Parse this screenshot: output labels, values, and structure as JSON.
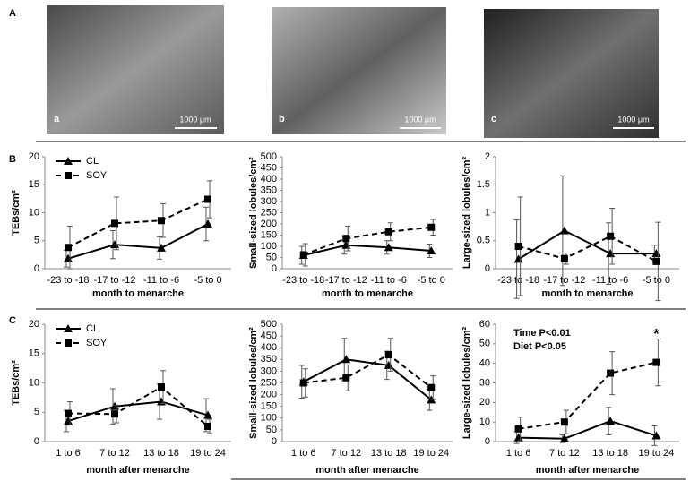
{
  "panel_labels": [
    "A",
    "B",
    "C"
  ],
  "images": [
    {
      "label": "a",
      "scale": "1000 μm"
    },
    {
      "label": "b",
      "scale": "1000 μm"
    },
    {
      "label": "c",
      "scale": "1000 μm"
    }
  ],
  "chart_data": [
    {
      "type": "line",
      "y_label": "TEBs/cm²",
      "x_label": "month to menarche",
      "categories": [
        "-23 to -18",
        "-17 to -12",
        "-11 to -6",
        "-5 to 0"
      ],
      "ylim": [
        0,
        20
      ],
      "yticks": [
        0,
        5,
        10,
        15,
        20
      ],
      "legend": "top-left",
      "series": [
        {
          "name": "CL",
          "color": "#000000",
          "marker": "triangle",
          "dashed": false,
          "values": [
            1.8,
            4.3,
            3.7,
            8.0
          ],
          "errors": [
            1.5,
            2.5,
            2.0,
            3.0
          ]
        },
        {
          "name": "SOY",
          "color": "#000000",
          "marker": "square",
          "dashed": true,
          "values": [
            3.8,
            8.1,
            8.6,
            12.4
          ],
          "errors": [
            3.8,
            4.7,
            3.0,
            3.3
          ]
        }
      ]
    },
    {
      "type": "line",
      "y_label": "Small-sized lobules/cm²",
      "x_label": "month to menarche",
      "categories": [
        "-23 to -18",
        "-17 to -12",
        "-11 to -6",
        "-5 to 0"
      ],
      "ylim": [
        0,
        500
      ],
      "yticks": [
        0,
        50,
        100,
        150,
        200,
        250,
        300,
        350,
        400,
        450,
        500
      ],
      "series": [
        {
          "name": "CL",
          "color": "#000000",
          "marker": "triangle",
          "dashed": false,
          "values": [
            60,
            105,
            95,
            80
          ],
          "errors": [
            40,
            40,
            30,
            30
          ]
        },
        {
          "name": "SOY",
          "color": "#000000",
          "marker": "square",
          "dashed": true,
          "values": [
            62,
            135,
            165,
            185
          ],
          "errors": [
            50,
            55,
            40,
            35
          ]
        }
      ]
    },
    {
      "type": "line",
      "y_label": "Large-sized lobules/cm²",
      "x_label": "month to menarche",
      "categories": [
        "-23 to -18",
        "-17 to -12",
        "-11 to -6",
        "-5 to 0"
      ],
      "ylim": [
        0,
        2
      ],
      "yticks": [
        0,
        0.5,
        1,
        1.5,
        2
      ],
      "series": [
        {
          "name": "CL",
          "color": "#000000",
          "marker": "triangle",
          "dashed": false,
          "values": [
            0.17,
            0.68,
            0.27,
            0.27
          ],
          "errors": [
            0.7,
            0.98,
            0.55,
            0.15
          ]
        },
        {
          "name": "SOY",
          "color": "#000000",
          "marker": "square",
          "dashed": true,
          "values": [
            0.4,
            0.18,
            0.58,
            0.13
          ],
          "errors": [
            0.88,
            0.1,
            0.5,
            0.7
          ]
        }
      ]
    },
    {
      "type": "line",
      "y_label": "TEBs/cm²",
      "x_label": "month after menarche",
      "categories": [
        "1 to 6",
        "7 to 12",
        "13 to 18",
        "19 to 24"
      ],
      "ylim": [
        0,
        20
      ],
      "yticks": [
        0,
        5,
        10,
        15,
        20
      ],
      "legend": "top-left",
      "series": [
        {
          "name": "CL",
          "color": "#000000",
          "marker": "triangle",
          "dashed": false,
          "values": [
            3.5,
            6.0,
            6.8,
            4.5
          ],
          "errors": [
            1.8,
            3.0,
            3.0,
            2.8
          ]
        },
        {
          "name": "SOY",
          "color": "#000000",
          "marker": "square",
          "dashed": true,
          "values": [
            4.8,
            4.7,
            9.3,
            2.6
          ],
          "errors": [
            2.0,
            1.5,
            2.8,
            1.2
          ]
        }
      ]
    },
    {
      "type": "line",
      "y_label": "Small-sized lobules/cm²",
      "x_label": "month after menarche",
      "categories": [
        "1 to 6",
        "7 to 12",
        "13 to 18",
        "19 to 24"
      ],
      "ylim": [
        0,
        500
      ],
      "yticks": [
        0,
        50,
        100,
        150,
        200,
        250,
        300,
        350,
        400,
        450,
        500
      ],
      "series": [
        {
          "name": "CL",
          "color": "#000000",
          "marker": "triangle",
          "dashed": false,
          "values": [
            255,
            350,
            325,
            178
          ],
          "errors": [
            70,
            90,
            60,
            45
          ]
        },
        {
          "name": "SOY",
          "color": "#000000",
          "marker": "square",
          "dashed": true,
          "values": [
            250,
            272,
            370,
            230
          ],
          "errors": [
            60,
            55,
            70,
            50
          ]
        }
      ]
    },
    {
      "type": "line",
      "y_label": "Large-sized lobules/cm²",
      "x_label": "month after menarche",
      "categories": [
        "1 to 6",
        "7 to 12",
        "13 to 18",
        "19 to 24"
      ],
      "ylim": [
        0,
        60
      ],
      "yticks": [
        0,
        10,
        20,
        30,
        40,
        50,
        60
      ],
      "annotations": [
        "Time P<0.01",
        "Diet P<0.05",
        "*"
      ],
      "series": [
        {
          "name": "CL",
          "color": "#000000",
          "marker": "triangle",
          "dashed": false,
          "values": [
            2,
            1.5,
            10.5,
            3
          ],
          "errors": [
            3,
            2,
            7,
            5
          ]
        },
        {
          "name": "SOY",
          "color": "#000000",
          "marker": "square",
          "dashed": true,
          "values": [
            6.5,
            10,
            35,
            40.5
          ],
          "errors": [
            6,
            6,
            11,
            12
          ]
        }
      ]
    }
  ]
}
